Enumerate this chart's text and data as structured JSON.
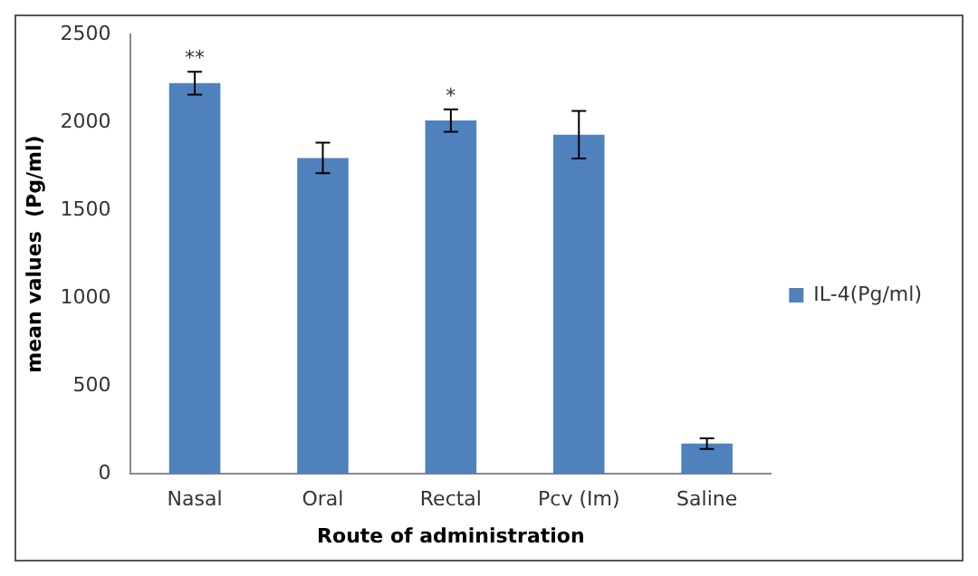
{
  "chart_data": {
    "type": "bar",
    "xlabel": "Route of administration",
    "ylabel": "mean values  (Pg/ml)",
    "categories": [
      "Nasal",
      "Oral",
      "Rectal",
      "Pcv (Im)",
      "Saline"
    ],
    "series": [
      {
        "name": "IL-4(Pg/ml)",
        "color": "#4f81bd",
        "values": [
          2223,
          1797,
          2010,
          1929,
          172
        ],
        "errors": [
          65,
          87,
          64,
          135,
          30
        ]
      }
    ],
    "ylim": [
      0,
      2500
    ],
    "yticks": [
      0,
      500,
      1000,
      1500,
      2000,
      2500
    ],
    "grid": false,
    "legend": "right",
    "annotations": [
      {
        "text": "**",
        "x": "Nasal",
        "y": 2290
      },
      {
        "text": "*",
        "x": "Rectal",
        "y": 2074
      }
    ]
  }
}
